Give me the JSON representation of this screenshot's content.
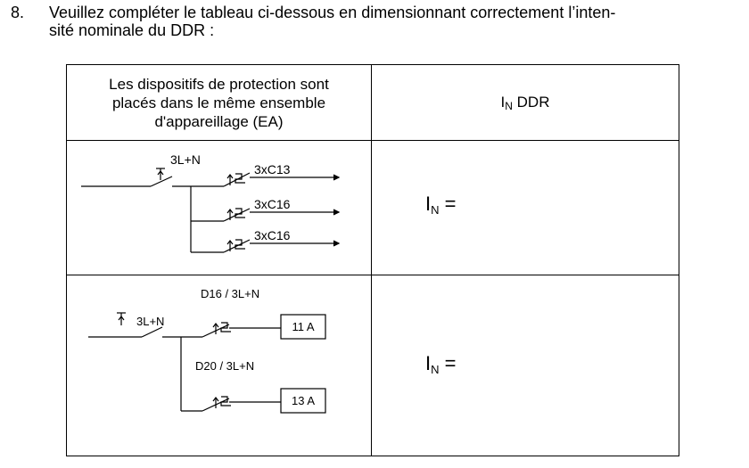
{
  "question": {
    "number": "8.",
    "line1": "Veuillez compléter le tableau ci-dessous en dimensionnant correctement l’inten-",
    "line2": "sité nominale du DDR :"
  },
  "table": {
    "header_left_lines": [
      "Les dispositifs de protection sont",
      "placés dans le même ensemble",
      "d'appareillage (EA)"
    ],
    "header_right": {
      "main": "I",
      "sub": "N",
      "suffix": " DDR"
    },
    "row1": {
      "main_label": "3L+N",
      "branches": [
        "3xC13",
        "3xC16",
        "3xC16"
      ],
      "answer": {
        "main": "I",
        "sub": "N",
        "suffix": " ="
      }
    },
    "row2": {
      "main_label": "3L+N",
      "branch_labels": [
        "D16 / 3L+N",
        "D20 / 3L+N"
      ],
      "loads": [
        "11 A",
        "13 A"
      ],
      "answer": {
        "main": "I",
        "sub": "N",
        "suffix": " ="
      }
    }
  }
}
